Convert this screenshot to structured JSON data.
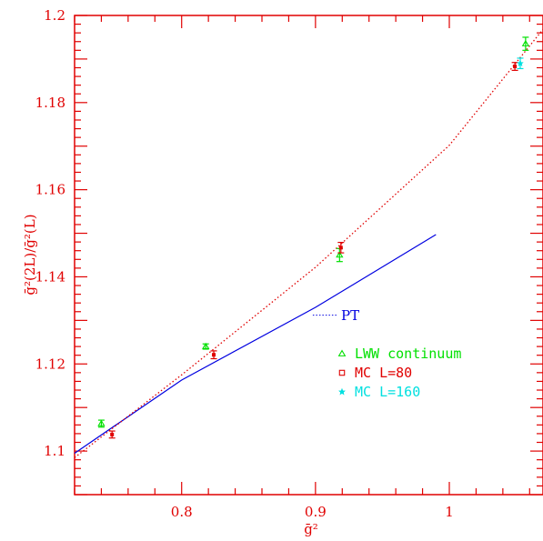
{
  "chart_data": {
    "type": "scatter",
    "xlabel": "ḡ²",
    "ylabel": "ḡ²(2L)/ḡ²(L)",
    "xlim": [
      0.72,
      1.07
    ],
    "ylim": [
      1.09,
      1.2
    ],
    "x_ticks": [
      "0.8",
      "0.9",
      "1"
    ],
    "y_ticks": [
      "1.1",
      "1.12",
      "1.14",
      "1.16",
      "1.18",
      "1.2"
    ],
    "x_tick_values": [
      0.8,
      0.9,
      1.0
    ],
    "y_tick_values": [
      1.1,
      1.12,
      1.14,
      1.16,
      1.18,
      1.2
    ],
    "grid": false,
    "legend_position": "right-middle",
    "series": [
      {
        "name": "LWW continuum",
        "marker": "triangle",
        "color": "#00e000",
        "points": [
          {
            "x": 0.74,
            "y": 1.1063,
            "err": 0.0008
          },
          {
            "x": 0.818,
            "y": 1.124,
            "err": 0.0006
          },
          {
            "x": 0.918,
            "y": 1.145,
            "err": 0.0015
          },
          {
            "x": 1.057,
            "y": 1.1935,
            "err": 0.0015
          }
        ]
      },
      {
        "name": "MC L=80",
        "marker": "square",
        "color": "#e00000",
        "points": [
          {
            "x": 0.748,
            "y": 1.1038,
            "err": 0.0008
          },
          {
            "x": 0.824,
            "y": 1.1221,
            "err": 0.0009
          },
          {
            "x": 0.919,
            "y": 1.1467,
            "err": 0.0012
          },
          {
            "x": 1.049,
            "y": 1.1883,
            "err": 0.0009
          }
        ]
      },
      {
        "name": "MC L=160",
        "marker": "star",
        "color": "#00e0e0",
        "points": [
          {
            "x": 1.053,
            "y": 1.189,
            "err": 0.0012
          }
        ]
      }
    ],
    "curves": [
      {
        "label": "PT",
        "style": "solid",
        "color": "#0000e0",
        "points": [
          [
            0.72,
            1.0995
          ],
          [
            0.8,
            1.1163
          ],
          [
            0.9,
            1.133
          ],
          [
            0.99,
            1.1497
          ]
        ]
      },
      {
        "label": "",
        "style": "dotted",
        "color": "#e00000",
        "points": [
          [
            0.72,
            1.0985
          ],
          [
            0.8,
            1.1175
          ],
          [
            0.9,
            1.1422
          ],
          [
            1.0,
            1.1702
          ],
          [
            1.07,
            1.1968
          ]
        ]
      }
    ],
    "pt_label": "PT",
    "pt_pointer": {
      "from_x": 0.898,
      "to_x": 0.917,
      "y": 1.1312
    },
    "colors": {
      "axes": "#e00000",
      "text": "#e00000"
    }
  }
}
